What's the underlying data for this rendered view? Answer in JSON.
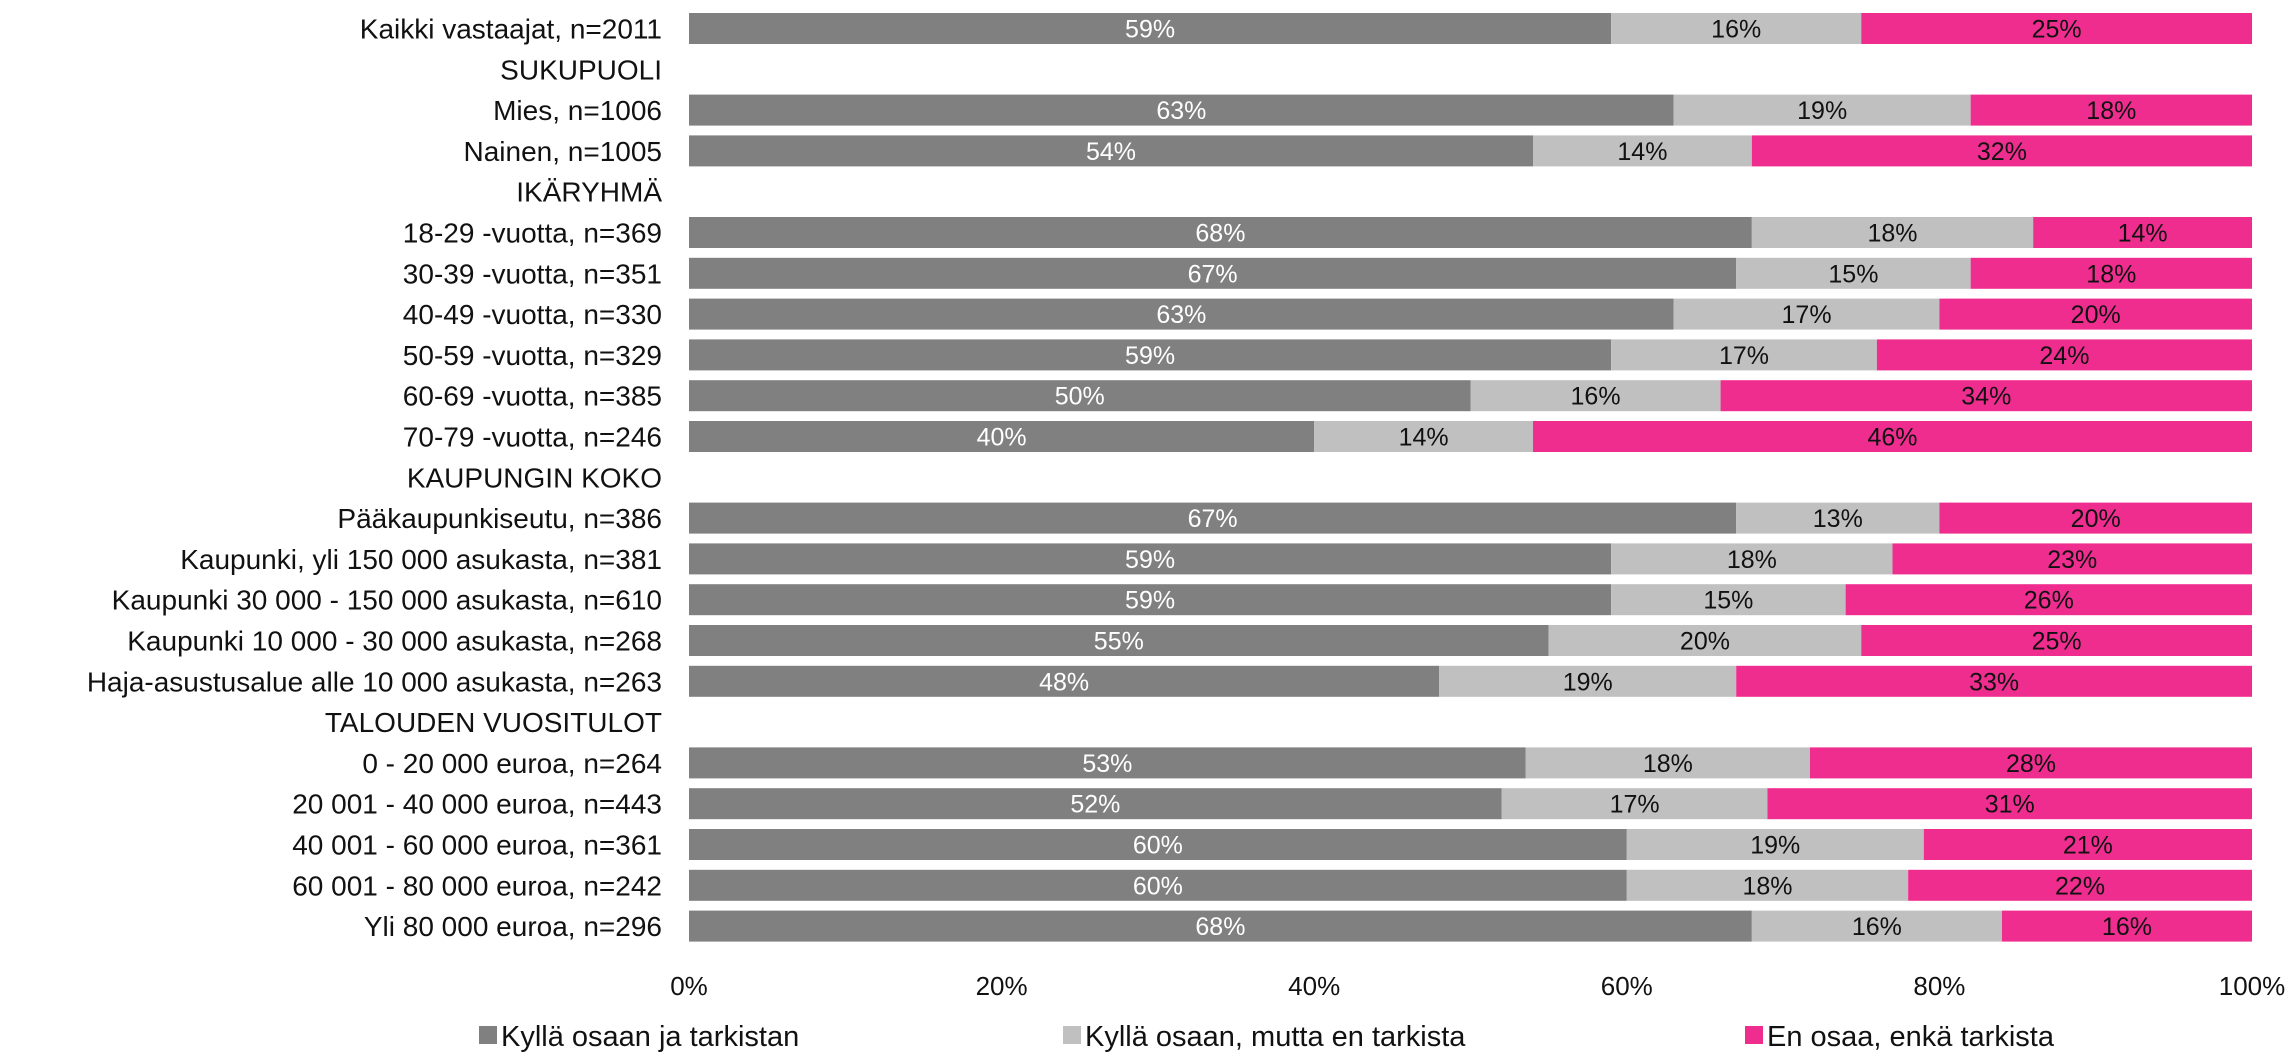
{
  "chart_data": {
    "type": "bar",
    "orientation": "horizontal",
    "stacked": true,
    "percent_stacked": true,
    "categories": [
      "Kaikki vastaajat, n=2011",
      "SUKUPUOLI",
      "Mies, n=1006",
      "Nainen, n=1005",
      "IKÄRYHMÄ",
      "18-29 -vuotta, n=369",
      "30-39 -vuotta, n=351",
      "40-49 -vuotta, n=330",
      "50-59 -vuotta, n=329",
      "60-69 -vuotta, n=385",
      "70-79 -vuotta, n=246",
      "KAUPUNGIN KOKO",
      "Pääkaupunkiseutu, n=386",
      "Kaupunki, yli 150 000 asukasta, n=381",
      "Kaupunki 30 000 - 150 000 asukasta, n=610",
      "Kaupunki 10 000 - 30 000 asukasta, n=268",
      "Haja-asustusalue alle 10 000 asukasta, n=263",
      "TALOUDEN VUOSITULOT",
      "0 - 20 000 euroa, n=264",
      "20 001 - 40 000 euroa, n=443",
      "40 001 - 60 000 euroa, n=361",
      "60 001 - 80 000 euroa, n=242",
      "Yli 80 000 euroa, n=296"
    ],
    "series": [
      {
        "name": "Kyllä osaan ja tarkistan",
        "color": "#808080",
        "label_color": "#ffffff",
        "values": [
          59,
          null,
          63,
          54,
          null,
          68,
          67,
          63,
          59,
          50,
          40,
          null,
          67,
          59,
          59,
          55,
          48,
          null,
          53,
          52,
          60,
          60,
          68
        ]
      },
      {
        "name": "Kyllä osaan, mutta en tarkista",
        "color": "#c0c0c0",
        "label_color": "#111111",
        "values": [
          16,
          null,
          19,
          14,
          null,
          18,
          15,
          17,
          17,
          16,
          14,
          null,
          13,
          18,
          15,
          20,
          19,
          null,
          18,
          17,
          19,
          18,
          16
        ]
      },
      {
        "name": "En osaa, enkä tarkista",
        "color": "#ee2d8f",
        "label_color": "#111111",
        "values": [
          25,
          null,
          18,
          32,
          null,
          14,
          18,
          20,
          24,
          34,
          46,
          null,
          20,
          23,
          26,
          25,
          33,
          null,
          28,
          31,
          21,
          22,
          16
        ]
      }
    ],
    "xlim": [
      0,
      100
    ],
    "x_ticks": [
      "0%",
      "20%",
      "40%",
      "60%",
      "80%",
      "100%"
    ],
    "value_suffix": "%",
    "grid": false,
    "legend_position": "bottom",
    "title": "",
    "xlabel": "",
    "ylabel": ""
  }
}
